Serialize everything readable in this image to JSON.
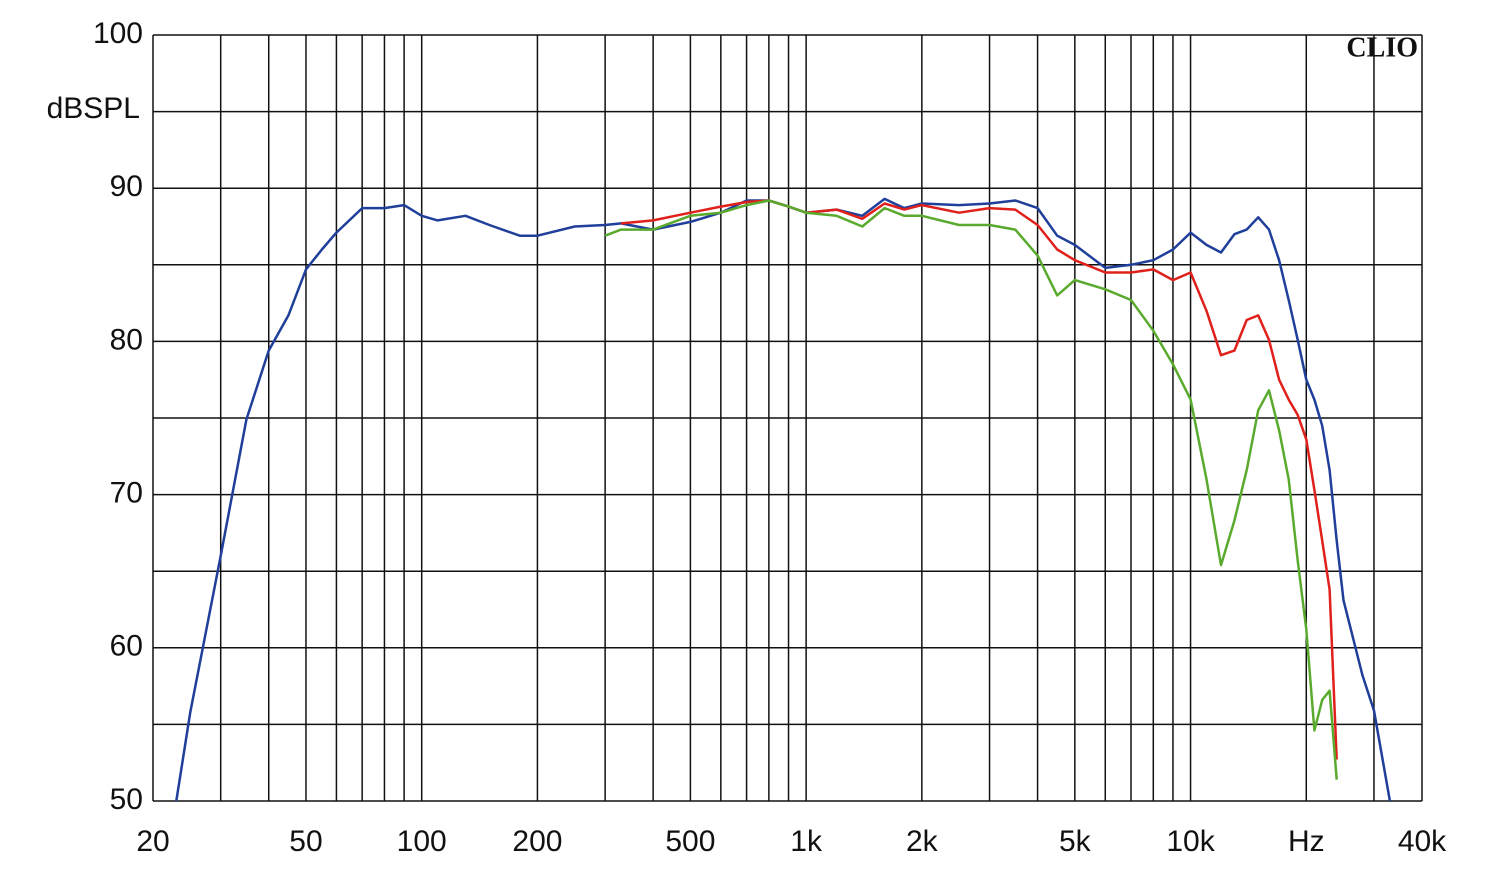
{
  "chart_data": {
    "type": "line",
    "ylabel": "dBSPL",
    "annotation": "CLIO",
    "log_x": true,
    "grid": true,
    "xlim": [
      20,
      40000
    ],
    "ylim": [
      50,
      100
    ],
    "xticks": [
      20,
      50,
      100,
      200,
      500,
      {
        "value": 1000,
        "label": "1k"
      },
      {
        "value": 2000,
        "label": "2k"
      },
      {
        "value": 5000,
        "label": "5k"
      },
      {
        "value": 10000,
        "label": "10k"
      },
      {
        "value": 20000,
        "label": "Hz"
      },
      {
        "value": 40000,
        "label": "40k"
      }
    ],
    "yticks": [
      50,
      60,
      70,
      80,
      90,
      100
    ],
    "xgrid": [
      20,
      30,
      40,
      50,
      60,
      70,
      80,
      90,
      100,
      200,
      300,
      400,
      500,
      600,
      700,
      800,
      900,
      1000,
      2000,
      3000,
      4000,
      5000,
      6000,
      7000,
      8000,
      9000,
      10000,
      20000,
      30000,
      40000
    ],
    "ygrid": [
      50,
      55,
      60,
      65,
      70,
      75,
      80,
      85,
      90,
      95,
      100
    ],
    "x": [
      23,
      25,
      30,
      35,
      40,
      45,
      50,
      55,
      60,
      70,
      80,
      90,
      100,
      110,
      130,
      150,
      180,
      200,
      250,
      300,
      330,
      400,
      500,
      600,
      700,
      800,
      900,
      1000,
      1200,
      1400,
      1600,
      1800,
      2000,
      2500,
      3000,
      3500,
      4000,
      4500,
      5000,
      6000,
      7000,
      8000,
      9000,
      10000,
      11000,
      12000,
      13000,
      14000,
      15000,
      16000,
      17000,
      18000,
      19000,
      20000,
      21000,
      22000,
      23000,
      24000,
      25000,
      28000,
      30000,
      33000
    ],
    "series": [
      {
        "color": "#1f3f9a",
        "values": [
          50,
          55.8,
          66,
          74.9,
          79.4,
          81.7,
          84.7,
          86,
          87.1,
          88.7,
          88.7,
          88.9,
          88.2,
          87.9,
          88.2,
          87.6,
          86.9,
          86.9,
          87.5,
          87.6,
          87.7,
          87.3,
          87.8,
          88.4,
          89.2,
          89.2,
          88.8,
          88.4,
          88.6,
          88.2,
          89.3,
          88.7,
          89,
          88.9,
          89,
          89.2,
          88.7,
          86.9,
          86.3,
          84.8,
          85,
          85.3,
          86,
          87.1,
          86.3,
          85.8,
          87,
          87.3,
          88.1,
          87.3,
          85.3,
          82.7,
          80.1,
          77.5,
          76.2,
          74.5,
          71.6,
          67,
          63.1,
          58.2,
          55.9,
          50
        ]
      },
      {
        "color": "#e0201b",
        "values": [
          null,
          null,
          null,
          null,
          null,
          null,
          null,
          null,
          null,
          null,
          null,
          null,
          null,
          null,
          null,
          null,
          null,
          null,
          null,
          null,
          87.7,
          87.9,
          88.4,
          88.8,
          89.1,
          89.2,
          88.8,
          88.4,
          88.6,
          88,
          89,
          88.6,
          88.9,
          88.4,
          88.7,
          88.6,
          87.6,
          86,
          85.3,
          84.5,
          84.5,
          84.7,
          84,
          84.5,
          82,
          79.1,
          79.4,
          81.4,
          81.7,
          80.1,
          77.5,
          76.2,
          75.2,
          73.6,
          70.3,
          67,
          63.8,
          52.7,
          null,
          null,
          null,
          null
        ]
      },
      {
        "color": "#5aaa2e",
        "values": [
          null,
          null,
          null,
          null,
          null,
          null,
          null,
          null,
          null,
          null,
          null,
          null,
          null,
          null,
          null,
          null,
          null,
          null,
          null,
          86.9,
          87.3,
          87.3,
          88.2,
          88.4,
          88.9,
          89.2,
          88.8,
          88.4,
          88.2,
          87.5,
          88.7,
          88.2,
          88.2,
          87.6,
          87.6,
          87.3,
          85.6,
          83,
          84,
          83.4,
          82.7,
          80.7,
          78.5,
          76.2,
          71,
          65.4,
          68.3,
          71.6,
          75.5,
          76.8,
          74.2,
          71,
          65.7,
          61.2,
          54.6,
          56.6,
          57.2,
          51.4,
          null,
          null,
          null,
          null
        ]
      }
    ]
  }
}
